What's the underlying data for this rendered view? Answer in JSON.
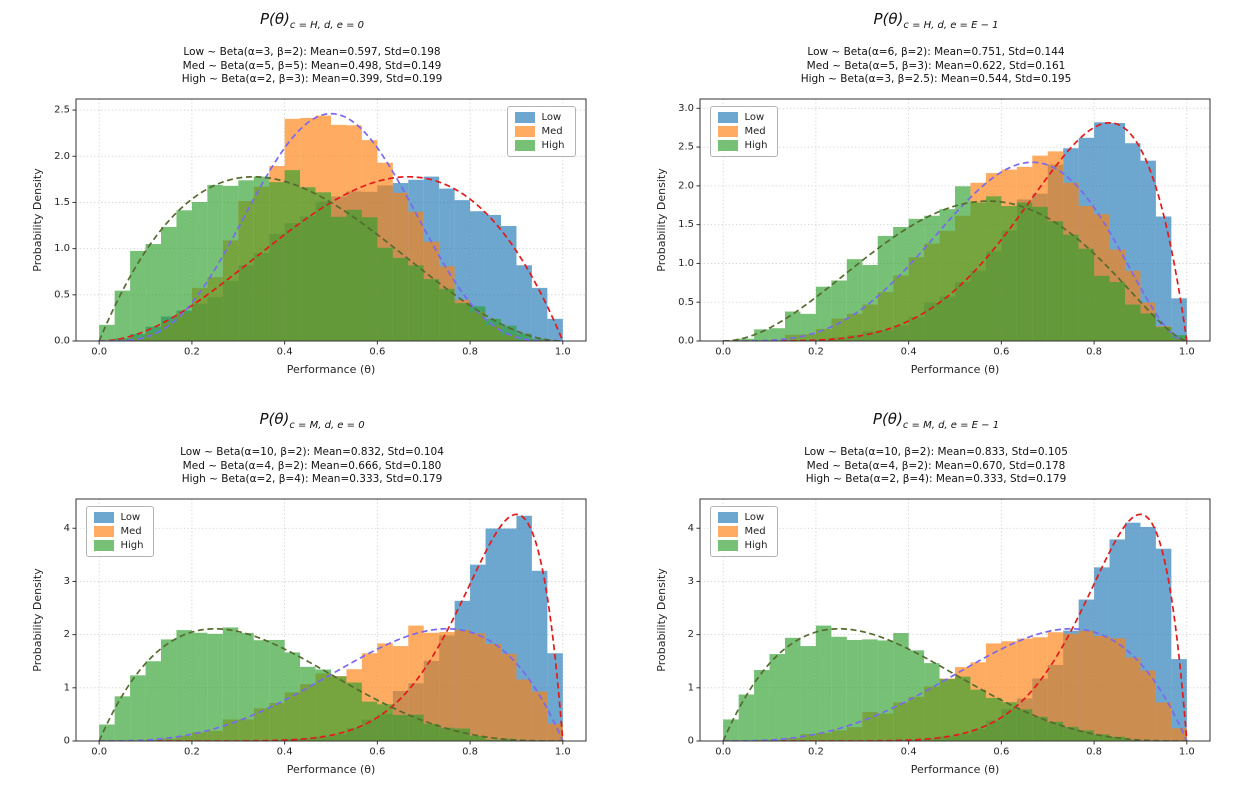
{
  "style": {
    "background": "#ffffff",
    "grid_color": "#c9c9c9",
    "spine_color": "#333333",
    "text_color": "#262626",
    "hist_alpha": 0.65
  },
  "chart_data": [
    {
      "type": "histogram+pdf",
      "title_main": "P(θ)",
      "title_sub": "c = H, d, e = 0",
      "subtitle_lines": [
        "Low ~ Beta(α=3, β=2): Mean=0.597, Std=0.198",
        "Med ~ Beta(α=5, β=5): Mean=0.498, Std=0.149",
        "High ~ Beta(α=2, β=3): Mean=0.399, Std=0.199"
      ],
      "xlabel": "Performance (θ)",
      "ylabel": "Probability Density",
      "xlim": [
        -0.05,
        1.05
      ],
      "ylim": [
        0,
        2.62
      ],
      "xtick_values": [
        0,
        0.2,
        0.4,
        0.6,
        0.8,
        1.0
      ],
      "xtick_labels": [
        "0.0",
        "0.2",
        "0.4",
        "0.6",
        "0.8",
        "1.0"
      ],
      "ytick_values": [
        0,
        0.5,
        1.0,
        1.5,
        2.0,
        2.5
      ],
      "ytick_labels": [
        "0.0",
        "0.5",
        "1.0",
        "1.5",
        "2.0",
        "2.5"
      ],
      "bins": 30,
      "n_samples": 6000,
      "seed": 101,
      "legend_position": "upper-right",
      "series": [
        {
          "name": "Low",
          "alpha": 3,
          "beta": 2,
          "mean": 0.597,
          "std": 0.198,
          "hist_color": "#1f77b4",
          "fit_color": "#e31a1c"
        },
        {
          "name": "Med",
          "alpha": 5,
          "beta": 5,
          "mean": 0.498,
          "std": 0.149,
          "hist_color": "#ff7f0e",
          "fit_color": "#7b68ee"
        },
        {
          "name": "High",
          "alpha": 2,
          "beta": 3,
          "mean": 0.399,
          "std": 0.199,
          "hist_color": "#2ca02c",
          "fit_color": "#556b2f"
        }
      ]
    },
    {
      "type": "histogram+pdf",
      "title_main": "P(θ)",
      "title_sub": "c = H, d, e = E − 1",
      "subtitle_lines": [
        "Low ~ Beta(α=6, β=2): Mean=0.751, Std=0.144",
        "Med ~ Beta(α=5, β=3): Mean=0.622, Std=0.161",
        "High ~ Beta(α=3, β=2.5): Mean=0.544, Std=0.195"
      ],
      "xlabel": "Performance (θ)",
      "ylabel": "Probability Density",
      "xlim": [
        -0.05,
        1.05
      ],
      "ylim": [
        0,
        3.12
      ],
      "xtick_values": [
        0,
        0.2,
        0.4,
        0.6,
        0.8,
        1.0
      ],
      "xtick_labels": [
        "0.0",
        "0.2",
        "0.4",
        "0.6",
        "0.8",
        "1.0"
      ],
      "ytick_values": [
        0,
        0.5,
        1.0,
        1.5,
        2.0,
        2.5,
        3.0
      ],
      "ytick_labels": [
        "0.0",
        "0.5",
        "1.0",
        "1.5",
        "2.0",
        "2.5",
        "3.0"
      ],
      "bins": 30,
      "n_samples": 6000,
      "seed": 202,
      "legend_position": "upper-left",
      "series": [
        {
          "name": "Low",
          "alpha": 6,
          "beta": 2,
          "mean": 0.751,
          "std": 0.144,
          "hist_color": "#1f77b4",
          "fit_color": "#e31a1c"
        },
        {
          "name": "Med",
          "alpha": 5,
          "beta": 3,
          "mean": 0.622,
          "std": 0.161,
          "hist_color": "#ff7f0e",
          "fit_color": "#7b68ee"
        },
        {
          "name": "High",
          "alpha": 3,
          "beta": 2.5,
          "mean": 0.544,
          "std": 0.195,
          "hist_color": "#2ca02c",
          "fit_color": "#556b2f"
        }
      ]
    },
    {
      "type": "histogram+pdf",
      "title_main": "P(θ)",
      "title_sub": "c = M, d, e = 0",
      "subtitle_lines": [
        "Low ~ Beta(α=10, β=2): Mean=0.832, Std=0.104",
        "Med ~ Beta(α=4, β=2): Mean=0.666, Std=0.180",
        "High ~ Beta(α=2, β=4): Mean=0.333, Std=0.179"
      ],
      "xlabel": "Performance (θ)",
      "ylabel": "Probability Density",
      "xlim": [
        -0.05,
        1.05
      ],
      "ylim": [
        0,
        4.55
      ],
      "xtick_values": [
        0,
        0.2,
        0.4,
        0.6,
        0.8,
        1.0
      ],
      "xtick_labels": [
        "0.0",
        "0.2",
        "0.4",
        "0.6",
        "0.8",
        "1.0"
      ],
      "ytick_values": [
        0,
        1,
        2,
        3,
        4
      ],
      "ytick_labels": [
        "0",
        "1",
        "2",
        "3",
        "4"
      ],
      "bins": 30,
      "n_samples": 6000,
      "seed": 303,
      "legend_position": "upper-left",
      "series": [
        {
          "name": "Low",
          "alpha": 10,
          "beta": 2,
          "mean": 0.832,
          "std": 0.104,
          "hist_color": "#1f77b4",
          "fit_color": "#e31a1c"
        },
        {
          "name": "Med",
          "alpha": 4,
          "beta": 2,
          "mean": 0.666,
          "std": 0.18,
          "hist_color": "#ff7f0e",
          "fit_color": "#7b68ee"
        },
        {
          "name": "High",
          "alpha": 2,
          "beta": 4,
          "mean": 0.333,
          "std": 0.179,
          "hist_color": "#2ca02c",
          "fit_color": "#556b2f"
        }
      ]
    },
    {
      "type": "histogram+pdf",
      "title_main": "P(θ)",
      "title_sub": "c = M, d, e = E − 1",
      "subtitle_lines": [
        "Low ~ Beta(α=10, β=2): Mean=0.833, Std=0.105",
        "Med ~ Beta(α=4, β=2): Mean=0.670, Std=0.178",
        "High ~ Beta(α=2, β=4): Mean=0.333, Std=0.179"
      ],
      "xlabel": "Performance (θ)",
      "ylabel": "Probability Density",
      "xlim": [
        -0.05,
        1.05
      ],
      "ylim": [
        0,
        4.55
      ],
      "xtick_values": [
        0,
        0.2,
        0.4,
        0.6,
        0.8,
        1.0
      ],
      "xtick_labels": [
        "0.0",
        "0.2",
        "0.4",
        "0.6",
        "0.8",
        "1.0"
      ],
      "ytick_values": [
        0,
        1,
        2,
        3,
        4
      ],
      "ytick_labels": [
        "0",
        "1",
        "2",
        "3",
        "4"
      ],
      "bins": 30,
      "n_samples": 6000,
      "seed": 404,
      "legend_position": "upper-left",
      "series": [
        {
          "name": "Low",
          "alpha": 10,
          "beta": 2,
          "mean": 0.833,
          "std": 0.105,
          "hist_color": "#1f77b4",
          "fit_color": "#e31a1c"
        },
        {
          "name": "Med",
          "alpha": 4,
          "beta": 2,
          "mean": 0.67,
          "std": 0.178,
          "hist_color": "#ff7f0e",
          "fit_color": "#7b68ee"
        },
        {
          "name": "High",
          "alpha": 2,
          "beta": 4,
          "mean": 0.333,
          "std": 0.179,
          "hist_color": "#2ca02c",
          "fit_color": "#556b2f"
        }
      ]
    }
  ]
}
